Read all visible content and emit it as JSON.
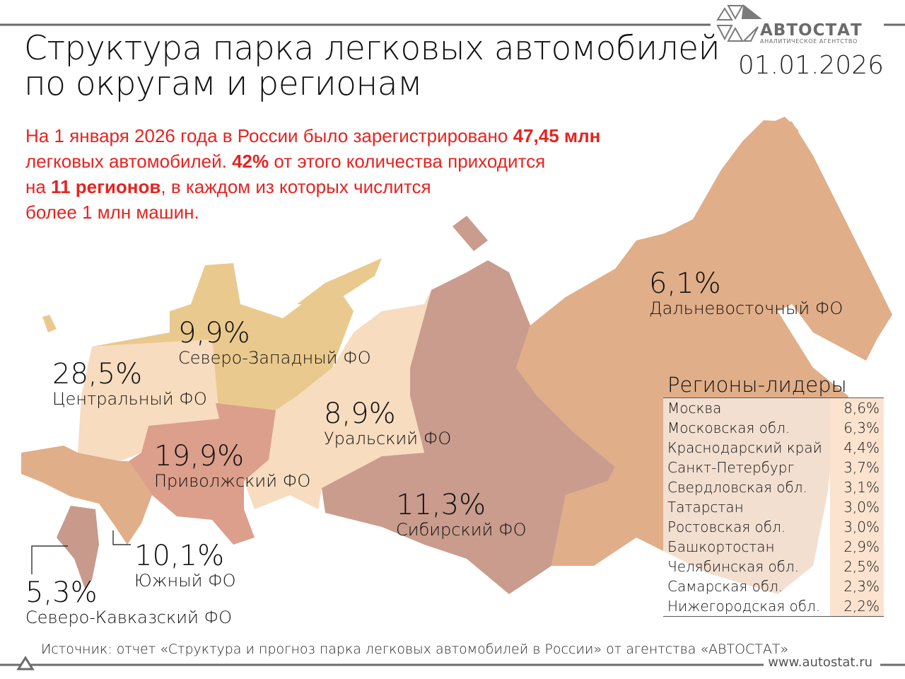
{
  "header": {
    "title_line1": "Структура парка легковых автомобилей",
    "title_line2": "по округам и регионам",
    "date": "01.01.2026",
    "logo_name": "АВТОСТАТ",
    "logo_sub": "АНАЛИТИЧЕСКОЕ АГЕНТСТВО"
  },
  "intro": {
    "p1": "На 1 января 2026 года в России было зарегистрировано ",
    "b1": "47,45 млн",
    "p2": "легковых автомобилей. ",
    "b2": "42%",
    "p3": " от этого количества приходится",
    "p4": "на ",
    "b3": "11 регионов",
    "p5": ", в каждом из которых числится",
    "p6": "более 1 млн машин."
  },
  "districts": [
    {
      "name": "Центральный ФО",
      "share": "28,5%",
      "color": "#f8dcbf"
    },
    {
      "name": "Северо-Западный ФО",
      "share": "9,9%",
      "color": "#eac98e"
    },
    {
      "name": "Приволжский ФО",
      "share": "19,9%",
      "color": "#dc9f8b"
    },
    {
      "name": "Уральский ФО",
      "share": "8,9%",
      "color": "#f7dcbf"
    },
    {
      "name": "Сибирский ФО",
      "share": "11,3%",
      "color": "#c99c8d"
    },
    {
      "name": "Дальневосточный ФО",
      "share": "6,1%",
      "color": "#e0ae89"
    },
    {
      "name": "Южный ФО",
      "share": "10,1%",
      "color": "#e0ae89"
    },
    {
      "name": "Северо-Кавказский ФО",
      "share": "5,3%",
      "color": "#c79a8c"
    }
  ],
  "leaders": {
    "title": "Регионы-лидеры",
    "rows": [
      {
        "name": "Москва",
        "value": "8,6%"
      },
      {
        "name": "Московская обл.",
        "value": "6,3%"
      },
      {
        "name": "Краснодарский край",
        "value": "4,4%"
      },
      {
        "name": "Санкт-Петербург",
        "value": "3,7%"
      },
      {
        "name": "Свердловская обл.",
        "value": "3,1%"
      },
      {
        "name": "Татарстан",
        "value": "3,0%"
      },
      {
        "name": "Ростовская обл.",
        "value": "3,0%"
      },
      {
        "name": "Башкортостан",
        "value": "2,9%"
      },
      {
        "name": "Челябинская обл.",
        "value": "2,5%"
      },
      {
        "name": "Самарская обл.",
        "value": "2,3%"
      },
      {
        "name": "Нижегородская обл.",
        "value": "2,2%"
      }
    ]
  },
  "footer": {
    "source": "Источник: отчет «Структура и прогноз парка легковых автомобилей в России» от агентства «АВТОСТАТ»",
    "url": "www.autostat.ru"
  },
  "colors": {
    "accent": "#e52421",
    "rule": "#6b6b6b"
  }
}
